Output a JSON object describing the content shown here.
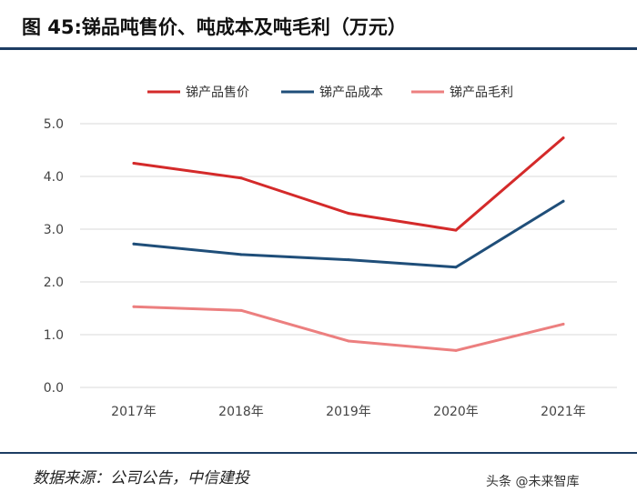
{
  "title": "图 45:锑品吨售价、吨成本及吨毛利（万元）",
  "source": "数据来源：公司公告，中信建投",
  "watermark": "头条 @未来智库",
  "chart_data": {
    "type": "line",
    "categories": [
      "2017年",
      "2018年",
      "2019年",
      "2020年",
      "2021年"
    ],
    "ylim": [
      0,
      5
    ],
    "yticks": [
      "0.0",
      "1.0",
      "2.0",
      "3.0",
      "4.0",
      "5.0"
    ],
    "grid": true,
    "legend_position": "top",
    "series": [
      {
        "name": "锑产品售价",
        "color": "#d42a2a",
        "values": [
          4.25,
          3.97,
          3.3,
          2.98,
          4.73
        ]
      },
      {
        "name": "锑产品成本",
        "color": "#1f4e79",
        "values": [
          2.72,
          2.52,
          2.42,
          2.28,
          3.53
        ]
      },
      {
        "name": "锑产品毛利",
        "color": "#ec7f7f",
        "values": [
          1.53,
          1.46,
          0.88,
          0.7,
          1.2
        ]
      }
    ]
  }
}
